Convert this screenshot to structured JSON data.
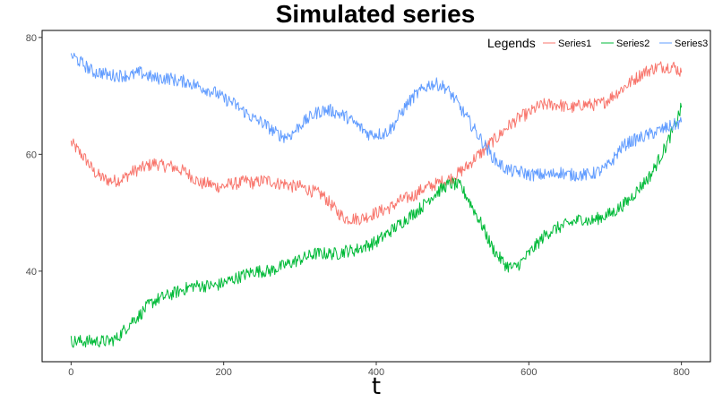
{
  "chart_data": {
    "type": "line",
    "title": "Simulated series",
    "xlabel": "t",
    "ylabel": "",
    "xlim": [
      -38,
      838
    ],
    "ylim": [
      24.5,
      81.2
    ],
    "x_ticks": [
      0,
      200,
      400,
      600,
      800
    ],
    "y_ticks": [
      40,
      60,
      80
    ],
    "grid": false,
    "legend": {
      "title": "Legends",
      "placement": "top-right"
    },
    "series": [
      {
        "name": "Series1",
        "color": "#F8766D",
        "x": [
          0,
          10,
          20,
          30,
          40,
          50,
          60,
          70,
          80,
          90,
          100,
          110,
          120,
          130,
          140,
          150,
          160,
          170,
          180,
          190,
          200,
          210,
          220,
          230,
          240,
          250,
          260,
          270,
          280,
          290,
          300,
          310,
          320,
          330,
          340,
          350,
          360,
          370,
          380,
          390,
          400,
          410,
          420,
          430,
          440,
          450,
          460,
          470,
          480,
          490,
          500,
          510,
          520,
          530,
          540,
          550,
          560,
          570,
          580,
          590,
          600,
          610,
          620,
          630,
          640,
          650,
          660,
          670,
          680,
          690,
          700,
          710,
          720,
          730,
          740,
          750,
          760,
          770,
          780,
          790,
          800
        ],
        "values": [
          62,
          60.5,
          59,
          57,
          56,
          55.5,
          55.5,
          56,
          57,
          57.5,
          58,
          58.5,
          58,
          58,
          57.5,
          57,
          56,
          55,
          55,
          54.5,
          54.5,
          55,
          55,
          55.5,
          55,
          55.5,
          55.5,
          55,
          55,
          54.5,
          54.5,
          54,
          53.5,
          53,
          51.5,
          50,
          49,
          49,
          49,
          49.5,
          50,
          50.5,
          51,
          52,
          52.5,
          53,
          54,
          54.5,
          55,
          55.5,
          56,
          57,
          58,
          59.5,
          60.5,
          62,
          63,
          64.5,
          65.5,
          66.5,
          67,
          68,
          68.5,
          68.5,
          68.5,
          68,
          68,
          68.5,
          68.5,
          68.5,
          69,
          70,
          71,
          72,
          73,
          74,
          74.5,
          75,
          75,
          75,
          74
        ]
      },
      {
        "name": "Series2",
        "color": "#00BA38",
        "x": [
          0,
          10,
          20,
          30,
          40,
          50,
          60,
          70,
          80,
          90,
          100,
          110,
          120,
          130,
          140,
          150,
          160,
          170,
          180,
          190,
          200,
          210,
          220,
          230,
          240,
          250,
          260,
          270,
          280,
          290,
          300,
          310,
          320,
          330,
          340,
          350,
          360,
          370,
          380,
          390,
          400,
          410,
          420,
          430,
          440,
          450,
          460,
          470,
          480,
          490,
          500,
          510,
          520,
          530,
          540,
          550,
          560,
          570,
          580,
          590,
          600,
          610,
          620,
          630,
          640,
          650,
          660,
          670,
          680,
          690,
          700,
          710,
          720,
          730,
          740,
          750,
          760,
          770,
          780,
          790,
          800
        ],
        "values": [
          28,
          28,
          28,
          28,
          28,
          28,
          28.5,
          30,
          31.5,
          32.5,
          34,
          35,
          35.5,
          36,
          36.5,
          37,
          37.5,
          37.5,
          37.5,
          37.5,
          38,
          38.5,
          39,
          39.5,
          40,
          40,
          40,
          40.5,
          41,
          41.5,
          42,
          42.5,
          43,
          43,
          43,
          43,
          43.5,
          43.5,
          44,
          44.5,
          45,
          46,
          47,
          48,
          49,
          50,
          51,
          52.5,
          53.5,
          54.5,
          55,
          54.5,
          52.5,
          50,
          47.5,
          44.5,
          42.5,
          41,
          40.5,
          41.5,
          43,
          44.5,
          46,
          47,
          47.5,
          48,
          48.5,
          49,
          48.5,
          49,
          49.5,
          50,
          51,
          52,
          53.5,
          55,
          56.5,
          59,
          61.5,
          64.5,
          68
        ]
      },
      {
        "name": "Series3",
        "color": "#619CFF",
        "x": [
          0,
          10,
          20,
          30,
          40,
          50,
          60,
          70,
          80,
          90,
          100,
          110,
          120,
          130,
          140,
          150,
          160,
          170,
          180,
          190,
          200,
          210,
          220,
          230,
          240,
          250,
          260,
          270,
          280,
          290,
          300,
          310,
          320,
          330,
          340,
          350,
          360,
          370,
          380,
          390,
          400,
          410,
          420,
          430,
          440,
          450,
          460,
          470,
          480,
          490,
          500,
          510,
          520,
          530,
          540,
          550,
          560,
          570,
          580,
          590,
          600,
          610,
          620,
          630,
          640,
          650,
          660,
          670,
          680,
          690,
          700,
          710,
          720,
          730,
          740,
          750,
          760,
          770,
          780,
          790,
          800
        ],
        "values": [
          77,
          76,
          75,
          74,
          74,
          73.5,
          73.5,
          73.5,
          73.5,
          74,
          73.5,
          73,
          73,
          73,
          72.5,
          72.5,
          72,
          71.5,
          71,
          70.5,
          69.5,
          69,
          68,
          67,
          66,
          65.5,
          64.5,
          63.5,
          63,
          63.5,
          65,
          66,
          67,
          67.5,
          67.5,
          67,
          66.5,
          65.5,
          64.5,
          63.5,
          63.5,
          63.5,
          64.5,
          66.5,
          68.5,
          70,
          71,
          72,
          72,
          71.5,
          70,
          68,
          66,
          64,
          62,
          60,
          58.5,
          57.5,
          57,
          57,
          56.5,
          56.5,
          56.5,
          56.5,
          57,
          56.5,
          56.5,
          56.5,
          56.5,
          57,
          57.5,
          59,
          61,
          62,
          62.5,
          63,
          63.5,
          64,
          64.5,
          65,
          65.5
        ]
      }
    ]
  }
}
